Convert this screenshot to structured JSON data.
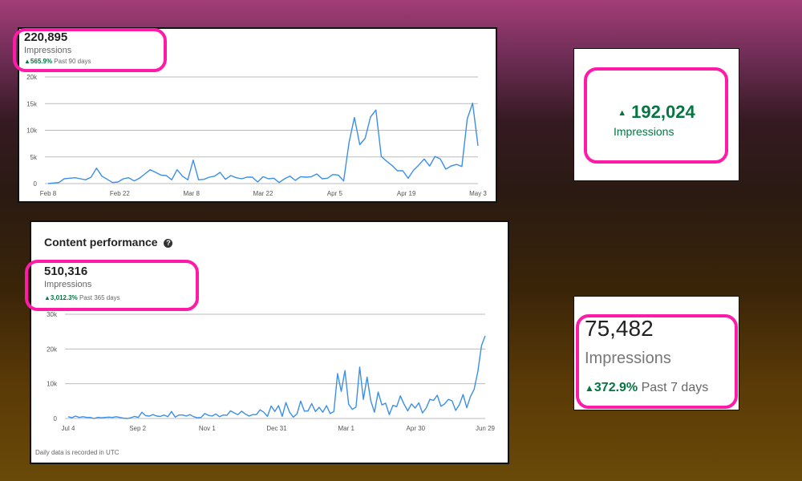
{
  "panel1": {
    "value": "220,895",
    "label": "Impressions",
    "change": "565.9%",
    "period": "Past 90 days"
  },
  "panel2": {
    "value": "192,024",
    "label": "Impressions"
  },
  "panel3": {
    "title": "Content performance",
    "value": "510,316",
    "label": "Impressions",
    "change": "3,012.3%",
    "period": "Past 365 days",
    "footnote": "Daily data is recorded in UTC"
  },
  "panel4": {
    "value": "75,482",
    "label": "Impressions",
    "change": "372.9%",
    "period": "Past 7 days"
  },
  "colors": {
    "line": "#3b8fe6",
    "accent": "#057642",
    "highlight": "#ff1aa8"
  },
  "icons": {
    "arrow": "triangle-up-icon",
    "help": "question-circle-icon"
  },
  "chart_data": [
    {
      "type": "line",
      "series": [
        {
          "values": [
            0,
            100,
            200,
            900,
            1000,
            1100,
            900,
            700,
            1200,
            2900,
            1400,
            800,
            200,
            300,
            900,
            1100,
            500,
            1000,
            1800,
            2600,
            2100,
            1600,
            1500,
            700,
            2600,
            1400,
            700,
            4400,
            700,
            800,
            1200,
            1400,
            2100,
            800,
            1500,
            1100,
            900,
            1200,
            1200,
            300,
            1300,
            900,
            1000,
            200,
            900,
            1400,
            600,
            1300,
            1200,
            1300,
            1800,
            900,
            1000,
            1700,
            1600,
            500,
            7700,
            12400,
            7300,
            8500,
            12500,
            13800,
            5100,
            4200,
            3400,
            2400,
            2400,
            1000,
            2500,
            3500,
            4600,
            3300,
            5100,
            4600,
            2700,
            3300,
            3600,
            3200,
            12100,
            15100,
            7100
          ]
        }
      ],
      "x_ticks": [
        "Feb 8",
        "Feb 22",
        "Mar 8",
        "Mar 22",
        "Apr 5",
        "Apr 19",
        "May 3"
      ],
      "y_ticks": [
        "0",
        "5k",
        "10k",
        "15k",
        "20k"
      ],
      "ylim": [
        0,
        20000
      ]
    },
    {
      "type": "line",
      "series": [
        {
          "values": [
            500,
            200,
            700,
            300,
            500,
            300,
            300,
            0,
            300,
            200,
            300,
            400,
            300,
            500,
            300,
            100,
            0,
            200,
            600,
            300,
            1800,
            800,
            700,
            1100,
            700,
            600,
            1000,
            500,
            2000,
            400,
            1000,
            1000,
            700,
            1100,
            500,
            200,
            300,
            1400,
            900,
            700,
            1300,
            500,
            1000,
            900,
            2200,
            1600,
            1100,
            2100,
            1300,
            700,
            1100,
            1100,
            2500,
            1800,
            600,
            3600,
            2000,
            3700,
            600,
            4600,
            1800,
            400,
            1300,
            5000,
            2100,
            2200,
            4300,
            2000,
            3200,
            1800,
            3700,
            1400,
            2000,
            12900,
            7800,
            13800,
            4100,
            2600,
            3300,
            14800,
            5500,
            11900,
            5100,
            1800,
            7600,
            3900,
            4400,
            1100,
            3800,
            3400,
            6500,
            4100,
            2200,
            4200,
            3000,
            4500,
            1600,
            3000,
            5500,
            5200,
            6700,
            3500,
            4200,
            5500,
            5100,
            2300,
            4000,
            6900,
            3100,
            6300,
            8400,
            13500,
            21000,
            23800
          ]
        }
      ],
      "x_ticks": [
        "Jul 4",
        "Sep 2",
        "Nov 1",
        "Dec 31",
        "Mar 1",
        "Apr 30",
        "Jun 29"
      ],
      "y_ticks": [
        "0",
        "10k",
        "20k",
        "30k"
      ],
      "ylim": [
        0,
        30000
      ]
    }
  ]
}
